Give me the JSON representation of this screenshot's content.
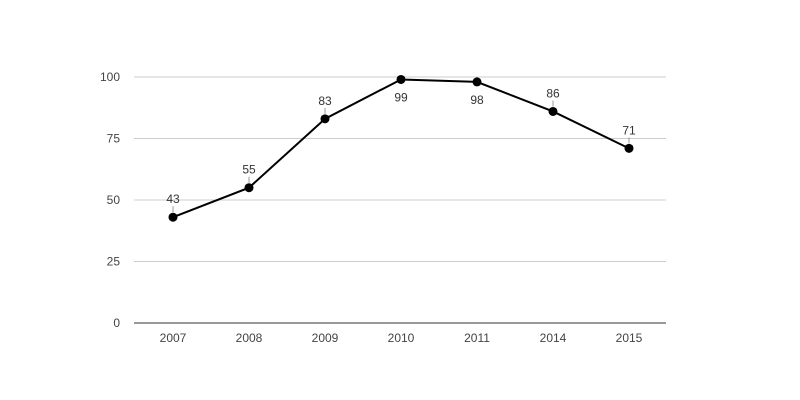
{
  "chart_data": {
    "type": "line",
    "categories": [
      "2007",
      "2008",
      "2009",
      "2010",
      "2011",
      "2014",
      "2015"
    ],
    "series": [
      {
        "values": [
          43,
          55,
          83,
          99,
          98,
          86,
          71
        ]
      }
    ],
    "data_label_positions": [
      "above",
      "above",
      "above",
      "below",
      "below",
      "above",
      "above"
    ],
    "ylim": [
      0,
      100
    ],
    "yticks": [
      0,
      25,
      50,
      75,
      100
    ],
    "grid": true,
    "colors": {
      "line": "#000000",
      "grid": "#cccccc",
      "axis": "#333333"
    }
  }
}
